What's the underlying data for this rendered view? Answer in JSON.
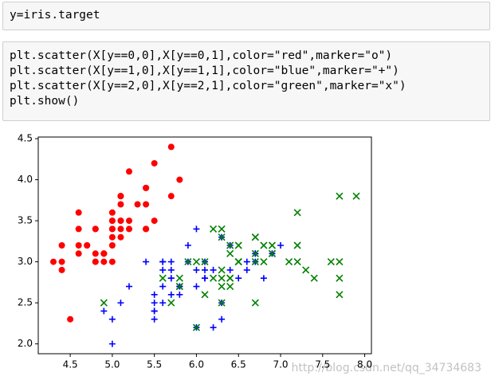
{
  "cells": [
    {
      "lines": [
        "y=iris.target"
      ]
    },
    {
      "lines": [
        "plt.scatter(X[y==0,0],X[y==0,1],color=\"red\",marker=\"o\")",
        "plt.scatter(X[y==1,0],X[y==1,1],color=\"blue\",marker=\"+\")",
        "plt.scatter(X[y==2,0],X[y==2,1],color=\"green\",marker=\"x\")",
        "plt.show()"
      ]
    }
  ],
  "watermark": "http://blog.csdn.net/qq_34734683",
  "chart_data": {
    "type": "scatter",
    "xlim": [
      4.12,
      8.08
    ],
    "ylim": [
      1.88,
      4.52
    ],
    "xticks": [
      4.5,
      {
        "value": 5,
        "label": "5.0"
      },
      5.5,
      {
        "value": 6,
        "label": "6.0"
      },
      6.5,
      {
        "value": 7,
        "label": "7.0"
      },
      7.5,
      {
        "value": 8,
        "label": "8.0"
      }
    ],
    "yticks": [
      {
        "value": 2,
        "label": "2.0"
      },
      2.5,
      {
        "value": 3,
        "label": "3.0"
      },
      3.5,
      {
        "value": 4,
        "label": "4.0"
      },
      4.5
    ],
    "series": [
      {
        "color": "red",
        "marker": "o",
        "x": [
          5.1,
          4.9,
          4.7,
          4.6,
          5.0,
          5.4,
          4.6,
          5.0,
          4.4,
          4.9,
          5.4,
          4.8,
          4.8,
          4.3,
          5.8,
          5.7,
          5.4,
          5.1,
          5.7,
          5.1,
          5.4,
          5.1,
          4.6,
          5.1,
          4.8,
          5.0,
          5.0,
          5.2,
          5.2,
          4.7,
          4.8,
          5.4,
          5.2,
          5.5,
          4.9,
          5.0,
          5.5,
          4.9,
          4.4,
          5.1,
          5.0,
          4.5,
          4.4,
          5.0,
          5.1,
          4.8,
          5.1,
          4.6,
          5.3,
          5.0
        ],
        "values": [
          3.5,
          3.0,
          3.2,
          3.1,
          3.6,
          3.9,
          3.4,
          3.4,
          2.9,
          3.1,
          3.7,
          3.4,
          3.0,
          3.0,
          4.0,
          4.4,
          3.9,
          3.5,
          3.8,
          3.8,
          3.4,
          3.7,
          3.6,
          3.3,
          3.4,
          3.0,
          3.4,
          3.5,
          3.4,
          3.2,
          3.1,
          3.4,
          4.1,
          4.2,
          3.1,
          3.2,
          3.5,
          3.1,
          3.0,
          3.4,
          3.5,
          2.3,
          3.2,
          3.5,
          3.8,
          3.0,
          3.8,
          3.2,
          3.7,
          3.3
        ]
      },
      {
        "color": "blue",
        "marker": "+",
        "x": [
          7.0,
          6.4,
          6.9,
          5.5,
          6.5,
          5.7,
          6.3,
          4.9,
          6.6,
          5.2,
          5.0,
          5.9,
          6.0,
          6.1,
          5.6,
          6.7,
          5.6,
          5.8,
          6.2,
          5.6,
          5.9,
          6.1,
          6.3,
          6.1,
          6.4,
          6.6,
          6.8,
          6.7,
          6.0,
          5.7,
          5.5,
          5.5,
          5.8,
          6.0,
          5.4,
          6.0,
          6.7,
          6.3,
          5.6,
          5.5,
          5.5,
          6.1,
          5.8,
          5.0,
          5.6,
          5.7,
          5.7,
          6.2,
          5.1,
          5.7
        ],
        "values": [
          3.2,
          3.2,
          3.1,
          2.3,
          2.8,
          2.8,
          3.3,
          2.4,
          2.9,
          2.7,
          2.0,
          3.0,
          2.2,
          2.9,
          2.9,
          3.1,
          3.0,
          2.7,
          2.2,
          2.5,
          3.2,
          2.8,
          2.5,
          2.8,
          2.9,
          3.0,
          2.8,
          3.0,
          2.9,
          2.6,
          2.4,
          2.4,
          2.7,
          2.7,
          3.0,
          3.4,
          3.1,
          2.3,
          3.0,
          2.5,
          2.6,
          3.0,
          2.6,
          2.3,
          2.7,
          3.0,
          2.9,
          2.9,
          2.5,
          2.8
        ]
      },
      {
        "color": "green",
        "marker": "x",
        "x": [
          6.3,
          5.8,
          7.1,
          6.3,
          6.5,
          7.6,
          4.9,
          7.3,
          6.7,
          7.2,
          6.5,
          6.4,
          6.8,
          5.7,
          5.8,
          6.4,
          6.5,
          7.7,
          7.7,
          6.0,
          6.9,
          5.6,
          7.7,
          6.3,
          6.7,
          7.2,
          6.2,
          6.1,
          6.4,
          7.2,
          7.4,
          7.9,
          6.4,
          6.3,
          6.1,
          7.7,
          6.3,
          6.4,
          6.0,
          6.9,
          6.7,
          6.9,
          5.8,
          6.8,
          6.7,
          6.7,
          6.3,
          6.5,
          6.2,
          5.9
        ],
        "values": [
          3.3,
          2.7,
          3.0,
          2.9,
          3.0,
          3.0,
          2.5,
          2.9,
          2.5,
          3.6,
          3.2,
          2.7,
          3.0,
          2.5,
          2.8,
          3.2,
          3.0,
          3.8,
          2.6,
          2.2,
          3.2,
          2.8,
          2.8,
          2.7,
          3.3,
          3.2,
          2.8,
          3.0,
          2.8,
          3.0,
          2.8,
          3.8,
          2.8,
          2.8,
          2.6,
          3.0,
          3.4,
          3.1,
          3.0,
          3.1,
          3.1,
          3.1,
          2.7,
          3.2,
          3.3,
          3.0,
          2.5,
          3.0,
          3.4,
          3.0
        ]
      }
    ]
  }
}
